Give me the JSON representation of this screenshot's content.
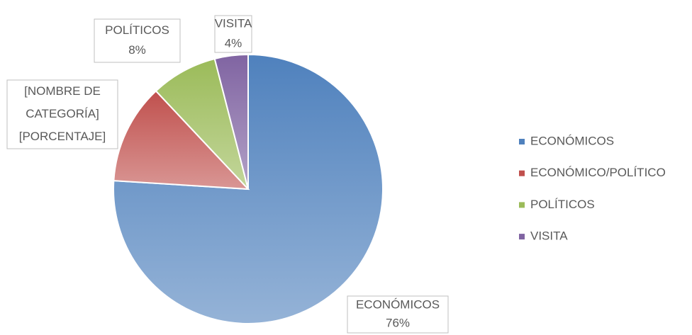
{
  "chart_data": {
    "type": "pie",
    "categories": [
      "ECONÓMICOS",
      "ECONÓMICO/POLÍTICO",
      "POLÍTICOS",
      "VISITA"
    ],
    "values": [
      76,
      12,
      8,
      4
    ],
    "value_labels": [
      "76%",
      "[PORCENTAJE]",
      "8%",
      "4%"
    ],
    "label_lines": [
      [
        "ECONÓMICOS"
      ],
      [
        "[NOMBRE DE",
        "CATEGORÍA]"
      ],
      [
        "POLÍTICOS"
      ],
      [
        "VISITA"
      ]
    ],
    "colors": [
      "#4f81bd",
      "#c0504d",
      "#9bbb59",
      "#8064a2"
    ],
    "legend": "right"
  }
}
